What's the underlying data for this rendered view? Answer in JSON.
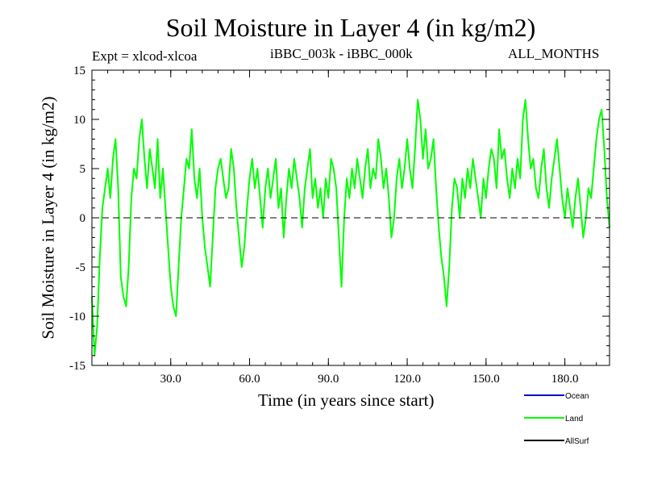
{
  "chart_data": {
    "type": "line",
    "title": "Soil Moisture in Layer 4 (in kg/m2)",
    "experiment": "Expt = xlcod-xlcoa",
    "subtitle": "iBBC_003k - iBBC_000k",
    "period": "ALL_MONTHS",
    "xlabel": "Time (in years since start)",
    "ylabel": "Soil Moisture in Layer 4 (in kg/m2)",
    "xlim": [
      0,
      197
    ],
    "ylim": [
      -15,
      15
    ],
    "xticks": [
      30,
      60,
      90,
      120,
      150,
      180
    ],
    "xtick_labels": [
      "30.0",
      "60.0",
      "90.0",
      "120.0",
      "150.0",
      "180.0"
    ],
    "yticks": [
      -15,
      -10,
      -5,
      0,
      5,
      10,
      15
    ],
    "ytick_labels": [
      "-15",
      "-10",
      "-5",
      "0",
      "5",
      "10",
      "15"
    ],
    "zero_line": 0,
    "legend": [
      {
        "name": "Ocean",
        "color": "#0000cc"
      },
      {
        "name": "Land",
        "color": "#00ff00"
      },
      {
        "name": "AllSurf",
        "color": "#000000"
      }
    ],
    "series": [
      {
        "name": "Land",
        "color": "#00ff00",
        "x": [
          0,
          1,
          2,
          3,
          4,
          5,
          6,
          7,
          8,
          9,
          10,
          11,
          12,
          13,
          14,
          15,
          16,
          17,
          18,
          19,
          20,
          21,
          22,
          23,
          24,
          25,
          26,
          27,
          28,
          29,
          30,
          31,
          32,
          33,
          34,
          35,
          36,
          37,
          38,
          39,
          40,
          41,
          42,
          43,
          44,
          45,
          46,
          47,
          48,
          49,
          50,
          51,
          52,
          53,
          54,
          55,
          56,
          57,
          58,
          59,
          60,
          61,
          62,
          63,
          64,
          65,
          66,
          67,
          68,
          69,
          70,
          71,
          72,
          73,
          74,
          75,
          76,
          77,
          78,
          79,
          80,
          81,
          82,
          83,
          84,
          85,
          86,
          87,
          88,
          89,
          90,
          91,
          92,
          93,
          94,
          95,
          96,
          97,
          98,
          99,
          100,
          101,
          102,
          103,
          104,
          105,
          106,
          107,
          108,
          109,
          110,
          111,
          112,
          113,
          114,
          115,
          116,
          117,
          118,
          119,
          120,
          121,
          122,
          123,
          124,
          125,
          126,
          127,
          128,
          129,
          130,
          131,
          132,
          133,
          134,
          135,
          136,
          137,
          138,
          139,
          140,
          141,
          142,
          143,
          144,
          145,
          146,
          147,
          148,
          149,
          150,
          151,
          152,
          153,
          154,
          155,
          156,
          157,
          158,
          159,
          160,
          161,
          162,
          163,
          164,
          165,
          166,
          167,
          168,
          169,
          170,
          171,
          172,
          173,
          174,
          175,
          176,
          177,
          178,
          179,
          180,
          181,
          182,
          183,
          184,
          185,
          186,
          187,
          188,
          189,
          190,
          191,
          192,
          193,
          194,
          195,
          196,
          197
        ],
        "values": [
          -8,
          -14,
          -11,
          -4,
          1,
          3,
          5,
          2,
          6,
          8,
          3,
          -6,
          -8,
          -9,
          -5,
          2,
          5,
          4,
          8,
          10,
          6,
          3,
          7,
          5,
          3,
          8,
          2,
          5,
          1,
          -3,
          -7,
          -9,
          -10,
          -5,
          0,
          3,
          6,
          5,
          9,
          4,
          2,
          5,
          0,
          -3,
          -5,
          -7,
          -2,
          3,
          5,
          6,
          4,
          2,
          3,
          7,
          5,
          1,
          -2,
          -5,
          -3,
          1,
          4,
          6,
          3,
          5,
          2,
          -1,
          3,
          5,
          2,
          4,
          6,
          1,
          3,
          -2,
          2,
          5,
          3,
          6,
          4,
          2,
          -1,
          3,
          5,
          7,
          2,
          4,
          1,
          3,
          0,
          4,
          2,
          6,
          5,
          3,
          -2,
          -7,
          0,
          4,
          2,
          5,
          3,
          6,
          4,
          2,
          5,
          7,
          3,
          5,
          4,
          8,
          6,
          3,
          5,
          2,
          -2,
          0,
          4,
          6,
          3,
          5,
          8,
          5,
          3,
          7,
          12,
          10,
          6,
          9,
          5,
          6,
          8,
          3,
          -1,
          -4,
          -6,
          -9,
          -5,
          1,
          4,
          3,
          0,
          4,
          2,
          5,
          3,
          6,
          4,
          2,
          0,
          4,
          2,
          5,
          7,
          6,
          3,
          9,
          6,
          7,
          4,
          2,
          5,
          3,
          6,
          4,
          10,
          12,
          8,
          5,
          6,
          3,
          2,
          5,
          7,
          3,
          1,
          4,
          6,
          8,
          5,
          2,
          0,
          3,
          1,
          -1,
          2,
          4,
          1,
          -2,
          0,
          3,
          2,
          5,
          8,
          10,
          11,
          7,
          2,
          -1
        ]
      }
    ]
  }
}
